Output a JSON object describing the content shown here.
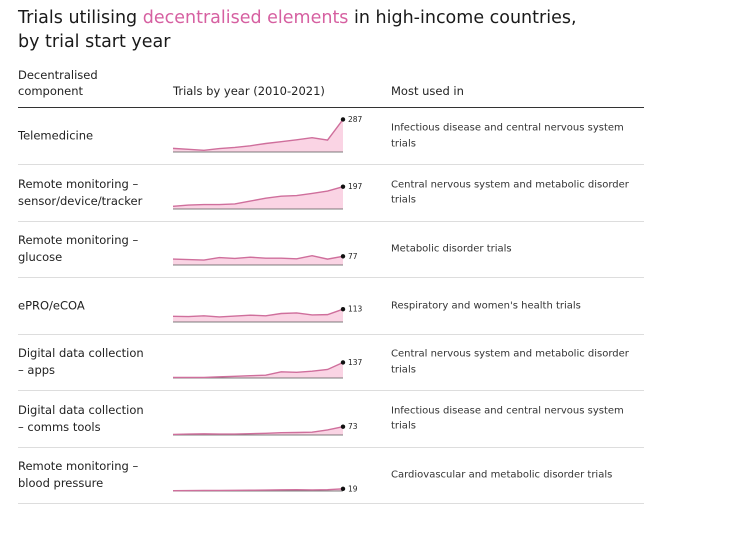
{
  "title": {
    "pre": "Trials utilising ",
    "highlight": "decentralised elements",
    "post": " in high-income countries,",
    "line2": "by trial start year"
  },
  "headers": {
    "component_1": "Decentralised",
    "component_2": "component",
    "trend": "Trials by year (2010-2021)",
    "used": "Most used in"
  },
  "colors": {
    "highlight": "#d660a1",
    "line": "#cf6f9c",
    "fill": "#fad4e4"
  },
  "chart_data": {
    "type": "line",
    "x": [
      2010,
      2011,
      2012,
      2013,
      2014,
      2015,
      2016,
      2017,
      2018,
      2019,
      2020,
      2021
    ],
    "ylim": [
      0,
      300
    ],
    "series": [
      {
        "name": "Telemedicine",
        "lines": [
          "Telemedicine"
        ],
        "values": [
          32,
          24,
          15,
          30,
          40,
          55,
          75,
          91,
          108,
          126,
          105,
          287
        ],
        "end_label": "287",
        "used": [
          "Infectious disease and central nervous system",
          "trials"
        ]
      },
      {
        "name": "Remote monitoring – sensor/device/tracker",
        "lines": [
          "Remote monitoring –",
          "sensor/device/tracker"
        ],
        "values": [
          24,
          35,
          39,
          39,
          45,
          70,
          95,
          113,
          119,
          137,
          158,
          197
        ],
        "end_label": "197",
        "used": [
          "Central nervous system and metabolic disorder",
          "trials"
        ]
      },
      {
        "name": "Remote monitoring – glucose",
        "lines": [
          "Remote monitoring –",
          "glucose"
        ],
        "values": [
          52,
          48,
          44,
          66,
          58,
          69,
          60,
          60,
          55,
          82,
          52,
          77
        ],
        "end_label": "77",
        "used": [
          "Metabolic disorder trials"
        ]
      },
      {
        "name": "ePRO/eCOA",
        "lines": [
          "ePRO/eCOA"
        ],
        "values": [
          50,
          48,
          55,
          45,
          52,
          60,
          55,
          75,
          80,
          62,
          65,
          113
        ],
        "end_label": "113",
        "used": [
          "Respiratory and women's health trials"
        ]
      },
      {
        "name": "Digital data collection – apps",
        "lines": [
          "Digital data collection",
          "– apps"
        ],
        "values": [
          5,
          5,
          5,
          10,
          15,
          20,
          25,
          55,
          50,
          60,
          75,
          137
        ],
        "end_label": "137",
        "used": [
          "Central nervous system and metabolic disorder",
          "trials"
        ]
      },
      {
        "name": "Digital data collection – comms tools",
        "lines": [
          "Digital data collection",
          "– comms tools"
        ],
        "values": [
          5,
          8,
          10,
          8,
          8,
          12,
          15,
          20,
          22,
          25,
          45,
          73
        ],
        "end_label": "73",
        "used": [
          "Infectious disease and central nervous system",
          "trials"
        ]
      },
      {
        "name": "Remote monitoring – blood pressure",
        "lines": [
          "Remote monitoring –",
          "blood pressure"
        ],
        "values": [
          3,
          4,
          5,
          5,
          6,
          7,
          8,
          10,
          12,
          9,
          12,
          19
        ],
        "end_label": "19",
        "used": [
          "Cardiovascular and metabolic disorder trials"
        ]
      }
    ]
  }
}
